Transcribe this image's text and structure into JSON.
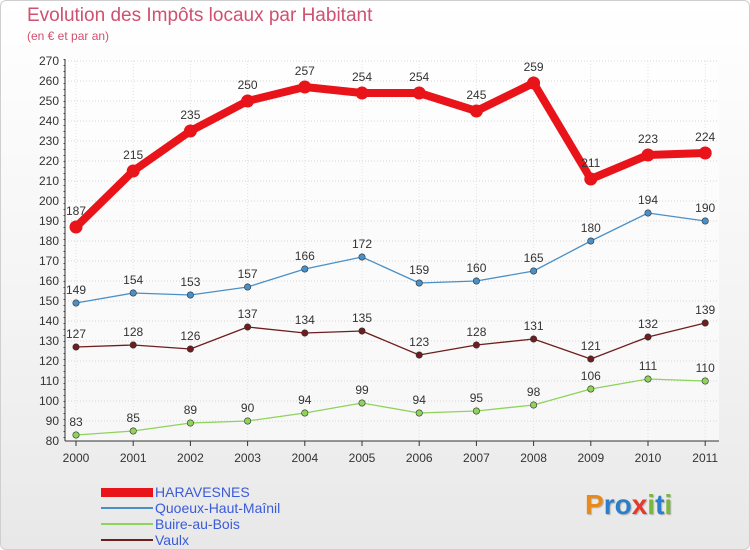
{
  "title": "Evolution des Impôts locaux par Habitant",
  "subtitle": "(en € et par an)",
  "logo": {
    "text": "Proxiti",
    "letters": [
      "P",
      "r",
      "o",
      "x",
      "i",
      "t",
      "i"
    ],
    "colors": [
      "#e88a1a",
      "#2b7ec9",
      "#2b7ec9",
      "#e33a2b",
      "#7ab83d",
      "#2b7ec9",
      "#7ab83d"
    ]
  },
  "chart_data": {
    "type": "line",
    "title": "Evolution des Impôts locaux par Habitant",
    "subtitle": "(en € et par an)",
    "x": [
      "2000",
      "2001",
      "2002",
      "2003",
      "2004",
      "2005",
      "2006",
      "2007",
      "2008",
      "2009",
      "2010",
      "2011"
    ],
    "ylim": [
      80,
      270
    ],
    "yticks": [
      80,
      90,
      100,
      110,
      120,
      130,
      140,
      150,
      160,
      170,
      180,
      190,
      200,
      210,
      220,
      230,
      240,
      250,
      260,
      270
    ],
    "grid": true,
    "legend_position": "bottom-left",
    "series": [
      {
        "name": "HARAVESNES",
        "color": "#e8141a",
        "emphasis": true,
        "values": [
          187,
          215,
          235,
          250,
          257,
          254,
          254,
          245,
          259,
          211,
          223,
          224
        ]
      },
      {
        "name": "Quoeux-Haut-Maînil",
        "color": "#4a90c8",
        "emphasis": false,
        "values": [
          149,
          154,
          153,
          157,
          166,
          172,
          159,
          160,
          165,
          180,
          194,
          190
        ]
      },
      {
        "name": "Buire-au-Bois",
        "color": "#8ed35a",
        "emphasis": false,
        "values": [
          83,
          85,
          89,
          90,
          94,
          99,
          94,
          95,
          98,
          106,
          111,
          110
        ]
      },
      {
        "name": "Vaulx",
        "color": "#6e1e1e",
        "emphasis": false,
        "values": [
          127,
          128,
          126,
          137,
          134,
          135,
          123,
          128,
          131,
          121,
          132,
          139
        ]
      }
    ]
  }
}
